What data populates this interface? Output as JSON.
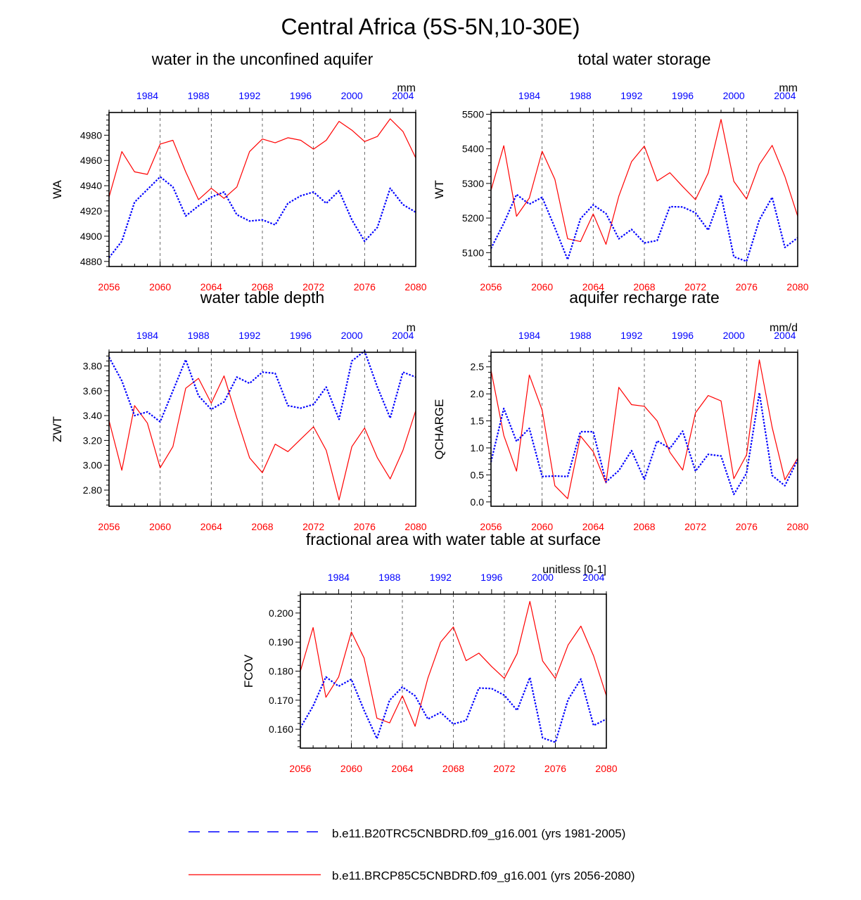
{
  "page": {
    "title": "Central Africa (5S-5N,10-30E)"
  },
  "colors": {
    "future": "#ff0000",
    "historical": "#0000ff",
    "grid": "#444444"
  },
  "legend": {
    "historical": "b.e11.B20TRC5CNBDRD.f09_g16.001 (yrs 1981-2005)",
    "future": "b.e11.BRCP85C5CNBDRD.f09_g16.001 (yrs 2056-2080)"
  },
  "chart_data": [
    {
      "id": "wa",
      "type": "line",
      "title": "water in the unconfined aquifer",
      "ylabel": "WA",
      "units": "mm",
      "ylim": [
        4876,
        4998
      ],
      "yticks": [
        4880,
        4900,
        4920,
        4940,
        4960,
        4980
      ],
      "ydec": 0,
      "x_bottom": {
        "range": [
          2056,
          2080
        ],
        "ticks": [
          2056,
          2060,
          2064,
          2068,
          2072,
          2076,
          2080
        ]
      },
      "x_top": {
        "range": [
          1981,
          2005
        ],
        "ticks": [
          1984,
          1988,
          1992,
          1996,
          2000,
          2004
        ]
      },
      "series": [
        {
          "name": "future",
          "values": [
            4931,
            4967,
            4951,
            4949,
            4973,
            4976,
            4951,
            4929,
            4938,
            4930,
            4939,
            4967,
            4977,
            4974,
            4978,
            4976,
            4969,
            4976,
            4991,
            4984,
            4975,
            4979,
            4993,
            4983,
            4962
          ]
        },
        {
          "name": "historical",
          "values": [
            4883,
            4896,
            4927,
            4937,
            4947,
            4939,
            4916,
            4924,
            4931,
            4935,
            4917,
            4912,
            4913,
            4909,
            4926,
            4932,
            4935,
            4926,
            4936,
            4913,
            4896,
            4907,
            4938,
            4925,
            4919
          ]
        }
      ]
    },
    {
      "id": "wt",
      "type": "line",
      "title": "total water storage",
      "ylabel": "WT",
      "units": "mm",
      "ylim": [
        5060,
        5505
      ],
      "yticks": [
        5100,
        5200,
        5300,
        5400,
        5500
      ],
      "ydec": 0,
      "x_bottom": {
        "range": [
          2056,
          2080
        ],
        "ticks": [
          2056,
          2060,
          2064,
          2068,
          2072,
          2076,
          2080
        ]
      },
      "x_top": {
        "range": [
          1981,
          2005
        ],
        "ticks": [
          1984,
          1988,
          1992,
          1996,
          2000,
          2004
        ]
      },
      "series": [
        {
          "name": "future",
          "values": [
            5280,
            5409,
            5205,
            5258,
            5393,
            5312,
            5140,
            5132,
            5212,
            5124,
            5263,
            5363,
            5408,
            5307,
            5331,
            5291,
            5253,
            5330,
            5485,
            5306,
            5255,
            5355,
            5410,
            5320,
            5205
          ]
        },
        {
          "name": "historical",
          "values": [
            5112,
            5185,
            5268,
            5240,
            5260,
            5172,
            5080,
            5198,
            5238,
            5213,
            5140,
            5167,
            5128,
            5135,
            5233,
            5232,
            5215,
            5165,
            5267,
            5088,
            5075,
            5195,
            5260,
            5115,
            5143
          ]
        }
      ]
    },
    {
      "id": "zwt",
      "type": "line",
      "title": "water table depth",
      "ylabel": "ZWT",
      "units": "m",
      "ylim": [
        2.67,
        3.91
      ],
      "yticks": [
        2.8,
        3.0,
        3.2,
        3.4,
        3.6,
        3.8
      ],
      "ydec": 2,
      "x_bottom": {
        "range": [
          2056,
          2080
        ],
        "ticks": [
          2056,
          2060,
          2064,
          2068,
          2072,
          2076,
          2080
        ]
      },
      "x_top": {
        "range": [
          1981,
          2005
        ],
        "ticks": [
          1984,
          1988,
          1992,
          1996,
          2000,
          2004
        ]
      },
      "series": [
        {
          "name": "future",
          "values": [
            3.36,
            2.96,
            3.48,
            3.34,
            2.98,
            3.15,
            3.62,
            3.7,
            3.5,
            3.72,
            3.38,
            3.06,
            2.94,
            3.17,
            3.11,
            3.21,
            3.31,
            3.12,
            2.72,
            3.15,
            3.3,
            3.06,
            2.89,
            3.12,
            3.44
          ]
        },
        {
          "name": "historical",
          "values": [
            3.87,
            3.68,
            3.4,
            3.43,
            3.35,
            3.6,
            3.85,
            3.56,
            3.45,
            3.51,
            3.71,
            3.66,
            3.75,
            3.74,
            3.48,
            3.46,
            3.49,
            3.63,
            3.37,
            3.84,
            3.92,
            3.63,
            3.38,
            3.75,
            3.71
          ]
        }
      ]
    },
    {
      "id": "qcharge",
      "type": "line",
      "title": "aquifer recharge rate",
      "ylabel": "QCHARGE",
      "units": "mm/d",
      "ylim": [
        -0.08,
        2.77
      ],
      "yticks": [
        0.0,
        0.5,
        1.0,
        1.5,
        2.0,
        2.5
      ],
      "ydec": 1,
      "x_bottom": {
        "range": [
          2056,
          2080
        ],
        "ticks": [
          2056,
          2060,
          2064,
          2068,
          2072,
          2076,
          2080
        ]
      },
      "x_top": {
        "range": [
          1981,
          2005
        ],
        "ticks": [
          1984,
          1988,
          1992,
          1996,
          2000,
          2004
        ]
      },
      "series": [
        {
          "name": "future",
          "values": [
            2.44,
            1.23,
            0.57,
            2.35,
            1.7,
            0.3,
            0.06,
            1.22,
            0.93,
            0.35,
            2.12,
            1.8,
            1.77,
            1.5,
            0.92,
            0.59,
            1.65,
            1.97,
            1.87,
            0.43,
            0.87,
            2.63,
            1.38,
            0.41,
            0.81
          ]
        },
        {
          "name": "historical",
          "values": [
            0.74,
            1.73,
            1.12,
            1.36,
            0.47,
            0.48,
            0.47,
            1.3,
            1.3,
            0.37,
            0.58,
            0.95,
            0.42,
            1.13,
            0.99,
            1.31,
            0.57,
            0.88,
            0.85,
            0.14,
            0.53,
            2.02,
            0.49,
            0.3,
            0.78
          ]
        }
      ]
    },
    {
      "id": "fcov",
      "type": "line",
      "title": "fractional area with water table at surface",
      "ylabel": "FCOV",
      "units": "unitless [0-1]",
      "ylim": [
        0.1535,
        0.2065
      ],
      "yticks": [
        0.16,
        0.17,
        0.18,
        0.19,
        0.2
      ],
      "ydec": 3,
      "x_bottom": {
        "range": [
          2056,
          2080
        ],
        "ticks": [
          2056,
          2060,
          2064,
          2068,
          2072,
          2076,
          2080
        ]
      },
      "x_top": {
        "range": [
          1981,
          2005
        ],
        "ticks": [
          1984,
          1988,
          1992,
          1996,
          2000,
          2004
        ]
      },
      "series": [
        {
          "name": "future",
          "values": [
            0.18,
            0.195,
            0.171,
            0.178,
            0.1935,
            0.1845,
            0.1638,
            0.1622,
            0.1715,
            0.161,
            0.1776,
            0.19,
            0.1952,
            0.1836,
            0.1862,
            0.1816,
            0.1775,
            0.186,
            0.204,
            0.1835,
            0.1775,
            0.189,
            0.1955,
            0.1852,
            0.1715
          ]
        },
        {
          "name": "historical",
          "values": [
            0.1605,
            0.168,
            0.178,
            0.1748,
            0.1772,
            0.1665,
            0.1568,
            0.17,
            0.1745,
            0.1715,
            0.1635,
            0.1658,
            0.1618,
            0.163,
            0.1742,
            0.174,
            0.1717,
            0.1665,
            0.1778,
            0.157,
            0.1555,
            0.1702,
            0.1773,
            0.1613,
            0.1635
          ]
        }
      ]
    }
  ]
}
